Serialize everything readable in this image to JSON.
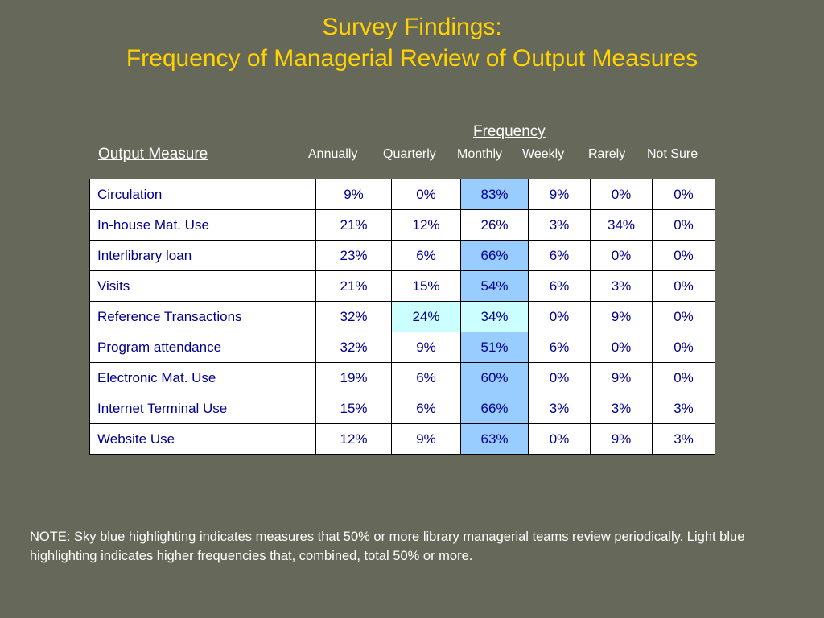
{
  "title": {
    "line1": "Survey Findings:",
    "line2": "Frequency of Managerial Review of Output Measures"
  },
  "headers": {
    "frequency": "Frequency",
    "output_measure": "Output Measure",
    "columns": [
      "Annually",
      "Quarterly",
      "Monthly",
      "Weekly",
      "Rarely",
      "Not Sure"
    ]
  },
  "colors": {
    "sky_blue": "#99CCFF",
    "light_blue": "#CCFFFF",
    "title": "#FFD200",
    "background": "#666859"
  },
  "rows": [
    {
      "measure": "Circulation",
      "values": [
        "9%",
        "0%",
        "83%",
        "9%",
        "0%",
        "0%"
      ],
      "highlights": [
        "",
        "",
        "sky",
        "",
        "",
        ""
      ]
    },
    {
      "measure": "In-house Mat. Use",
      "values": [
        "21%",
        "12%",
        "26%",
        "3%",
        "34%",
        "0%"
      ],
      "highlights": [
        "",
        "",
        "",
        "",
        "",
        ""
      ]
    },
    {
      "measure": "Interlibrary loan",
      "values": [
        "23%",
        "6%",
        "66%",
        "6%",
        "0%",
        "0%"
      ],
      "highlights": [
        "",
        "",
        "sky",
        "",
        "",
        ""
      ]
    },
    {
      "measure": "Visits",
      "values": [
        "21%",
        "15%",
        "54%",
        "6%",
        "3%",
        "0%"
      ],
      "highlights": [
        "",
        "",
        "sky",
        "",
        "",
        ""
      ]
    },
    {
      "measure": "Reference Transactions",
      "values": [
        "32%",
        "24%",
        "34%",
        "0%",
        "9%",
        "0%"
      ],
      "highlights": [
        "",
        "light",
        "light",
        "",
        "",
        ""
      ]
    },
    {
      "measure": "Program attendance",
      "values": [
        "32%",
        "9%",
        "51%",
        "6%",
        "0%",
        "0%"
      ],
      "highlights": [
        "",
        "",
        "sky",
        "",
        "",
        ""
      ]
    },
    {
      "measure": "Electronic Mat. Use",
      "values": [
        "19%",
        "6%",
        "60%",
        "0%",
        "9%",
        "0%"
      ],
      "highlights": [
        "",
        "",
        "sky",
        "",
        "",
        ""
      ]
    },
    {
      "measure": "Internet Terminal Use",
      "values": [
        "15%",
        "6%",
        "66%",
        "3%",
        "3%",
        "3%"
      ],
      "highlights": [
        "",
        "",
        "sky",
        "",
        "",
        ""
      ]
    },
    {
      "measure": "Website Use",
      "values": [
        "12%",
        "9%",
        "63%",
        "0%",
        "9%",
        "3%"
      ],
      "highlights": [
        "",
        "",
        "sky",
        "",
        "",
        ""
      ]
    }
  ],
  "note": "NOTE:  Sky blue highlighting indicates measures that 50% or more library managerial teams review periodically.  Light blue highlighting indicates higher frequencies that, combined, total 50% or more."
}
